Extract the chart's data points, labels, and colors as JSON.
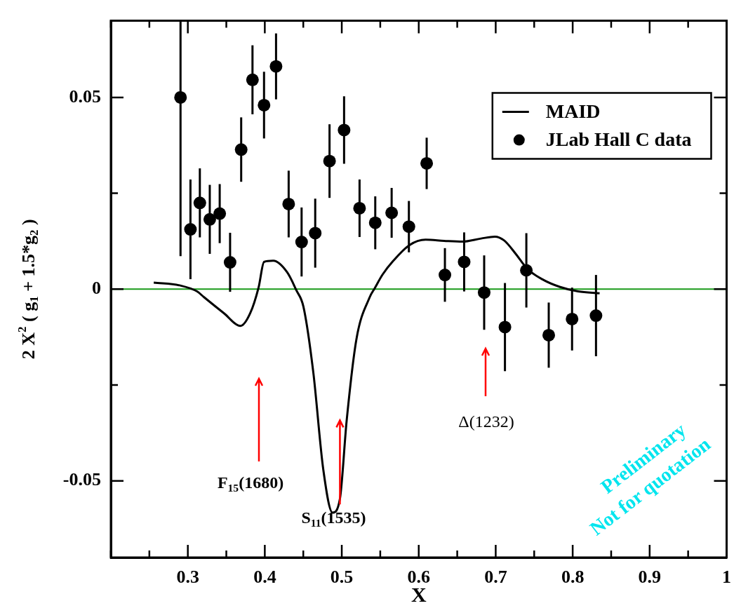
{
  "chart_data": {
    "type": "scatter",
    "xlabel": "X",
    "ylabel": "2 X$^{2}$ ( g$_{1}$ + 1.5*g$_{2}$ )",
    "xlim": [
      0.2,
      1.0
    ],
    "xticks": [
      {
        "value": 0.2,
        "label": null
      },
      {
        "value": 0.25,
        "label": null
      },
      0.3,
      {
        "value": 0.35,
        "label": null
      },
      0.4,
      {
        "value": 0.45,
        "label": null
      },
      0.5,
      {
        "value": 0.55,
        "label": null
      },
      0.6,
      {
        "value": 0.65,
        "label": null
      },
      0.7,
      {
        "value": 0.75,
        "label": null
      },
      0.8,
      {
        "value": 0.85,
        "label": null
      },
      0.9,
      {
        "value": 0.95,
        "label": null
      },
      1
    ],
    "ylim": [
      -0.07,
      0.07
    ],
    "yticks": [
      -0.05,
      {
        "value": -0.025,
        "label": null
      },
      0,
      {
        "value": 0.025,
        "label": null
      },
      0.05
    ],
    "grid": false,
    "legend": "top right",
    "series": [
      {
        "name": "MAID",
        "type": "line",
        "color": "#000000",
        "marker": "none",
        "line_style": "solid",
        "x": [
          0.2557,
          0.291,
          0.312,
          0.321,
          0.347,
          0.3684,
          0.381,
          0.392,
          0.399,
          0.411,
          0.429,
          0.441,
          0.4502,
          0.463,
          0.476,
          0.488,
          0.4976,
          0.5063,
          0.519,
          0.5363,
          0.543,
          0.553,
          0.567,
          0.588,
          0.609,
          0.633,
          0.657,
          0.681,
          0.6988,
          0.711,
          0.726,
          0.741,
          0.762,
          0.783,
          0.807,
          0.835
        ],
        "values": [
          0.0017,
          0.0009,
          -0.0006,
          -0.0021,
          -0.0063,
          -0.0096,
          -0.0063,
          0.0005,
          0.0071,
          0.0074,
          0.0044,
          -0.0003,
          -0.0046,
          -0.0217,
          -0.0471,
          -0.0583,
          -0.0547,
          -0.0344,
          -0.0131,
          -0.0021,
          0.0003,
          0.0038,
          0.0074,
          0.0115,
          0.0129,
          0.0126,
          0.0124,
          0.0132,
          0.0137,
          0.0127,
          0.0092,
          0.0053,
          0.0024,
          0.0006,
          -0.0006,
          -0.0011
        ]
      },
      {
        "name": "JLab Hall C data",
        "type": "scatter",
        "color": "#000000",
        "marker": "circle",
        "x": [
          0.2905,
          0.3034,
          0.3156,
          0.3285,
          0.3414,
          0.3549,
          0.3693,
          0.384,
          0.399,
          0.4146,
          0.431,
          0.4478,
          0.4655,
          0.4841,
          0.503,
          0.5231,
          0.5435,
          0.5648,
          0.5872,
          0.6103,
          0.634,
          0.659,
          0.685,
          0.712,
          0.7398,
          0.7689,
          0.7992,
          0.8303
        ],
        "values": [
          0.05,
          0.0156,
          0.0225,
          0.0182,
          0.0197,
          0.007,
          0.0364,
          0.0546,
          0.048,
          0.0581,
          0.0222,
          0.0123,
          0.0146,
          0.0334,
          0.0415,
          0.0211,
          0.0173,
          0.0199,
          0.0163,
          0.0328,
          0.0037,
          0.0071,
          -0.0009,
          -0.0099,
          0.0049,
          -0.012,
          -0.0078,
          -0.0069
        ],
        "errors": [
          [
            0.0086,
            0.07
          ],
          0.013,
          0.009,
          0.009,
          0.0077,
          0.0077,
          0.0084,
          0.009,
          0.0087,
          0.0086,
          0.0087,
          0.009,
          0.009,
          0.0096,
          0.0088,
          0.0075,
          0.0069,
          0.0065,
          0.0067,
          0.0067,
          0.007,
          0.0077,
          0.0097,
          0.0115,
          0.0097,
          0.0085,
          0.0082,
          0.0106
        ]
      }
    ],
    "ref_lines": [
      {
        "axis": "y",
        "value": 0,
        "color": "#1a9a1a"
      }
    ],
    "annotations": [
      "F$_{15}$(1680)",
      {
        "text": "S$_{11}$(1535)",
        "x": 0.4976,
        "y": -0.0547
      },
      "Δ(1232)",
      "Preliminary",
      "Not for quotation"
    ]
  }
}
